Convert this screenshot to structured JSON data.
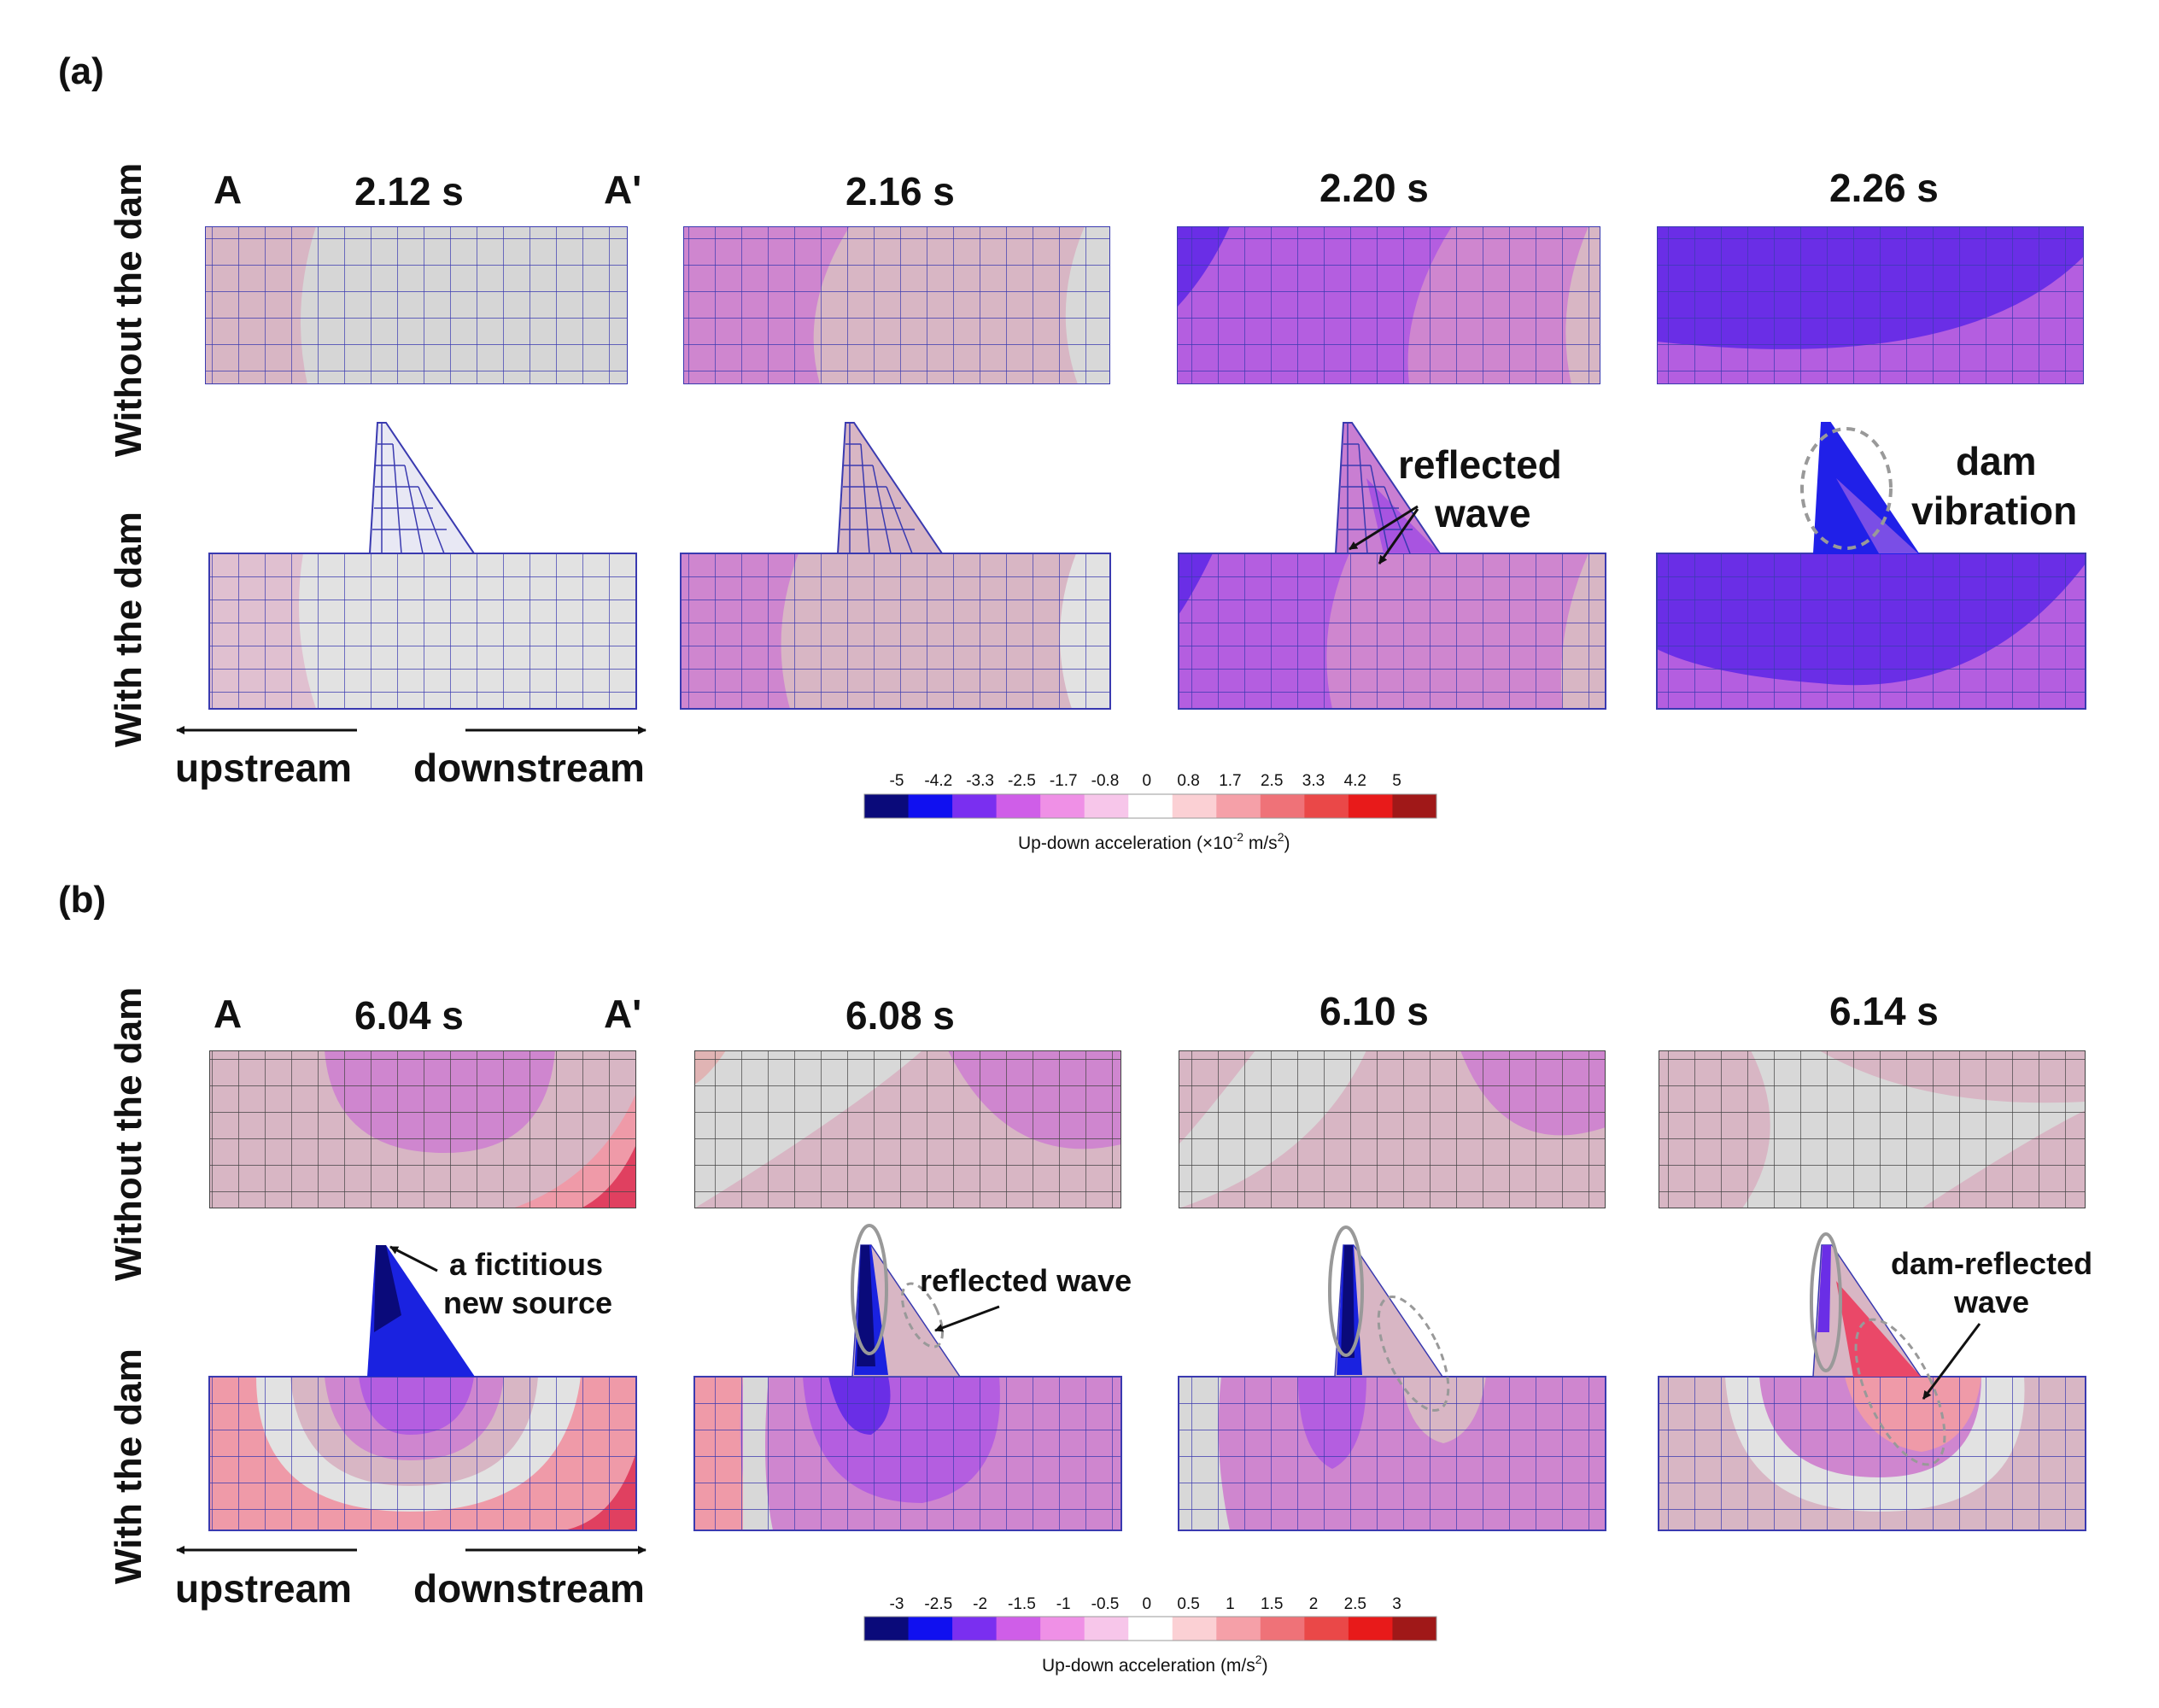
{
  "panel_a": {
    "label": "(a)",
    "row_labels": {
      "without": "Without the dam",
      "with": "With the dam"
    },
    "section_labels": {
      "start": "A",
      "end": "A'"
    },
    "times": [
      "2.12 s",
      "2.16 s",
      "2.20 s",
      "2.26 s"
    ],
    "annotations": {
      "reflected": [
        "reflected",
        "wave"
      ],
      "dam": [
        "dam",
        "vibration"
      ]
    },
    "directions": {
      "upstream": "upstream",
      "downstream": "downstream"
    },
    "colorbar": {
      "ticks": [
        "-5",
        "-4.2",
        "-3.3",
        "-2.5",
        "-1.7",
        "-0.8",
        "0",
        "0.8",
        "1.7",
        "2.5",
        "3.3",
        "4.2",
        "5"
      ],
      "title_main": "Up-down acceleration (×10",
      "title_exp1": "-2",
      "title_mid": " m/s",
      "title_exp2": "2",
      "title_end": ")"
    }
  },
  "panel_b": {
    "label": "(b)",
    "row_labels": {
      "without": "Without the dam",
      "with": "With the dam"
    },
    "section_labels": {
      "start": "A",
      "end": "A'"
    },
    "times": [
      "6.04 s",
      "6.08 s",
      "6.10 s",
      "6.14 s"
    ],
    "annotations": {
      "fictitious": [
        "a fictitious",
        "new source"
      ],
      "reflected": "reflected wave",
      "dam_reflected": [
        "dam-reflected",
        "wave"
      ]
    },
    "directions": {
      "upstream": "upstream",
      "downstream": "downstream"
    },
    "colorbar": {
      "ticks": [
        "-3",
        "-2.5",
        "-2",
        "-1.5",
        "-1",
        "-0.5",
        "0",
        "0.5",
        "1",
        "1.5",
        "2",
        "2.5",
        "3"
      ],
      "title_main": "Up-down acceleration (m/s",
      "title_exp": "2",
      "title_end": ")"
    }
  },
  "colors": {
    "scale": [
      "#0a0a7a",
      "#1010f0",
      "#7a2ff0",
      "#cf5ee8",
      "#ef90e6",
      "#f7c6ea",
      "#ffffff",
      "#fbd0d4",
      "#f5a0a8",
      "#ef7278",
      "#ea4848",
      "#e81a1a",
      "#a01818"
    ],
    "mesh_blue": "#3a3ab0",
    "mesh_dark": "#333333",
    "neutral": "#d8d8d8",
    "pale_pink": "#d9b6c4",
    "mauve": "#cf86cf",
    "purple": "#b45ee0",
    "violet": "#6a2ee6"
  }
}
